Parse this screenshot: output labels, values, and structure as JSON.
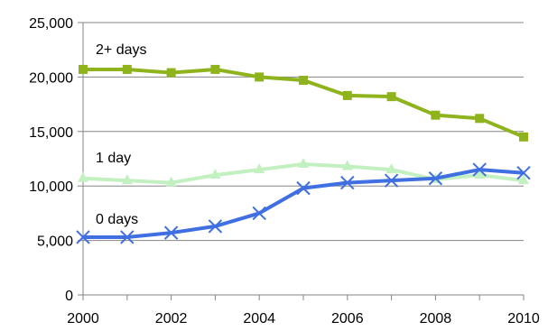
{
  "chart_data": {
    "type": "line",
    "title": "",
    "xlabel": "",
    "ylabel": "",
    "x": [
      2000,
      2001,
      2002,
      2003,
      2004,
      2005,
      2006,
      2007,
      2008,
      2009,
      2010
    ],
    "xlim": [
      2000,
      2010
    ],
    "ylim": [
      0,
      25000
    ],
    "x_ticks": [
      "2000",
      "2002",
      "2004",
      "2006",
      "2008",
      "2010"
    ],
    "y_ticks": [
      "0",
      "5,000",
      "10,000",
      "15,000",
      "20,000",
      "25,000"
    ],
    "grid": "horizontal",
    "legend": "none",
    "series": [
      {
        "name": "2+ days",
        "color": "#8fb31d",
        "marker": "square",
        "values": [
          20700,
          20700,
          20400,
          20700,
          20000,
          19700,
          18300,
          18200,
          16500,
          16200,
          14500
        ]
      },
      {
        "name": "1 day",
        "color": "#c3f0c0",
        "marker": "triangle",
        "values": [
          10700,
          10500,
          10300,
          11000,
          11500,
          12000,
          11800,
          11500,
          10600,
          11000,
          10500
        ]
      },
      {
        "name": "0 days",
        "color": "#3f6fe0",
        "marker": "x",
        "values": [
          5300,
          5300,
          5700,
          6300,
          7500,
          9800,
          10300,
          10500,
          10700,
          11500,
          11200
        ]
      }
    ]
  }
}
